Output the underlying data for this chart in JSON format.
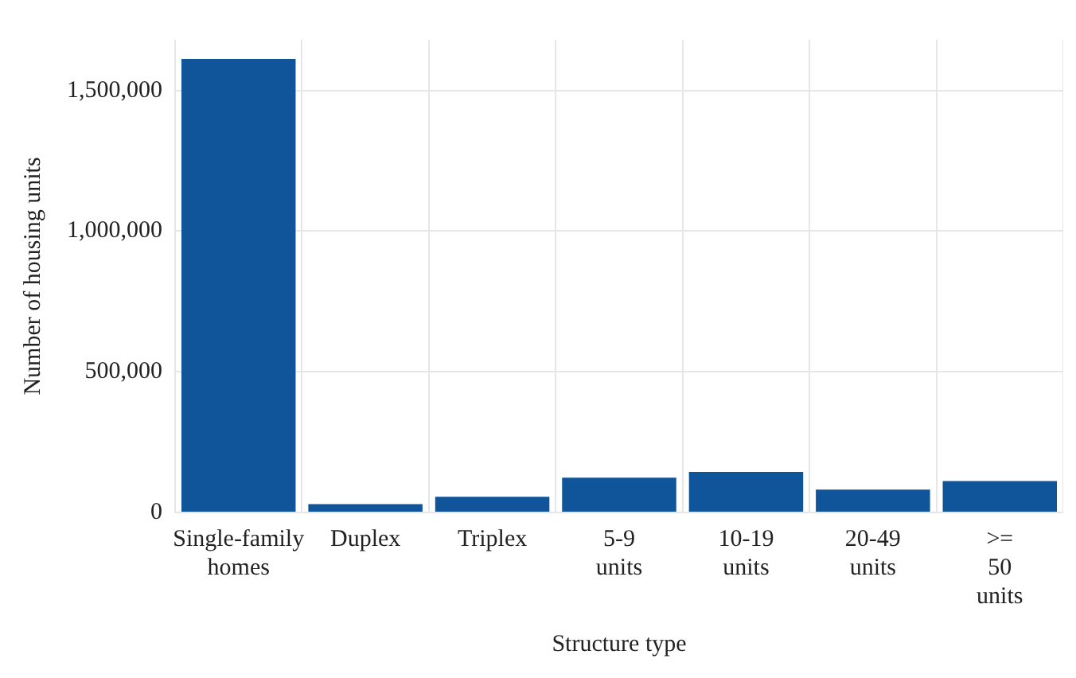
{
  "chart_data": {
    "type": "bar",
    "xlabel": "Structure type",
    "ylabel": "Number of housing units",
    "categories": [
      "Single-family homes",
      "Duplex",
      "Triplex",
      "5-9 units",
      "10-19 units",
      "20-49 units",
      ">= 50 units"
    ],
    "values": [
      1612000,
      30000,
      56000,
      124000,
      144000,
      81000,
      112000
    ],
    "color": "#10549a",
    "ylim": [
      0,
      1680000
    ],
    "yticks": [
      {
        "value": 0,
        "label": "0"
      },
      {
        "value": 500000,
        "label": "500,000"
      },
      {
        "value": 1000000,
        "label": "1,000,000"
      },
      {
        "value": 1500000,
        "label": "1,500,000"
      }
    ],
    "grid": true
  }
}
